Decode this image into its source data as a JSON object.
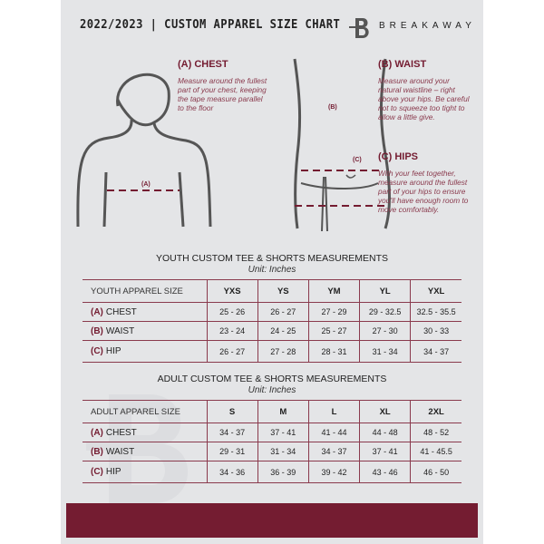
{
  "header": {
    "title": "2022/2023 | CUSTOM APPAREL SIZE CHART",
    "brand": "BREAKAWAY",
    "logo_letter": "B"
  },
  "guide": {
    "chest": {
      "title": "(A) CHEST",
      "text": "Measure around the fullest part of your chest, keeping the tape measure parallel to the floor",
      "marker": "(A)"
    },
    "waist": {
      "title": "(B) WAIST",
      "text": "Measure around your natural waistline – right above your hips. Be careful not to squeeze too tight to allow a little give.",
      "marker": "(B)"
    },
    "hips": {
      "title": "(C) HIPS",
      "text": "With your feet together, measure around the fullest part of your hips to ensure you'll have enough room to move comfortably.",
      "marker": "(C)"
    }
  },
  "youth": {
    "title": "YOUTH CUSTOM TEE & SHORTS MEASUREMENTS",
    "unit": "Unit: Inches",
    "header": "YOUTH APPAREL SIZE",
    "sizes": [
      "YXS",
      "YS",
      "YM",
      "YL",
      "YXL"
    ],
    "rows": [
      {
        "letter": "(A)",
        "label": "CHEST",
        "values": [
          "25 - 26",
          "26 - 27",
          "27 - 29",
          "29 - 32.5",
          "32.5 - 35.5"
        ]
      },
      {
        "letter": "(B)",
        "label": "WAIST",
        "values": [
          "23 - 24",
          "24 - 25",
          "25 - 27",
          "27 - 30",
          "30 - 33"
        ]
      },
      {
        "letter": "(C)",
        "label": "HIP",
        "values": [
          "26 - 27",
          "27 - 28",
          "28 - 31",
          "31 - 34",
          "34 - 37"
        ]
      }
    ]
  },
  "adult": {
    "title": "ADULT CUSTOM TEE & SHORTS MEASUREMENTS",
    "unit": "Unit: Inches",
    "header": "ADULT APPAREL SIZE",
    "sizes": [
      "S",
      "M",
      "L",
      "XL",
      "2XL"
    ],
    "rows": [
      {
        "letter": "(A)",
        "label": "CHEST",
        "values": [
          "34 - 37",
          "37 - 41",
          "41 - 44",
          "44 - 48",
          "48 - 52"
        ]
      },
      {
        "letter": "(B)",
        "label": "WAIST",
        "values": [
          "29 - 31",
          "31 - 34",
          "34 - 37",
          "37 - 41",
          "41 - 45.5"
        ]
      },
      {
        "letter": "(C)",
        "label": "HIP",
        "values": [
          "34 - 36",
          "36 - 39",
          "39 - 42",
          "43 - 46",
          "46 - 50"
        ]
      }
    ]
  },
  "colors": {
    "accent": "#741c31",
    "panel": "#e4e5e7"
  }
}
